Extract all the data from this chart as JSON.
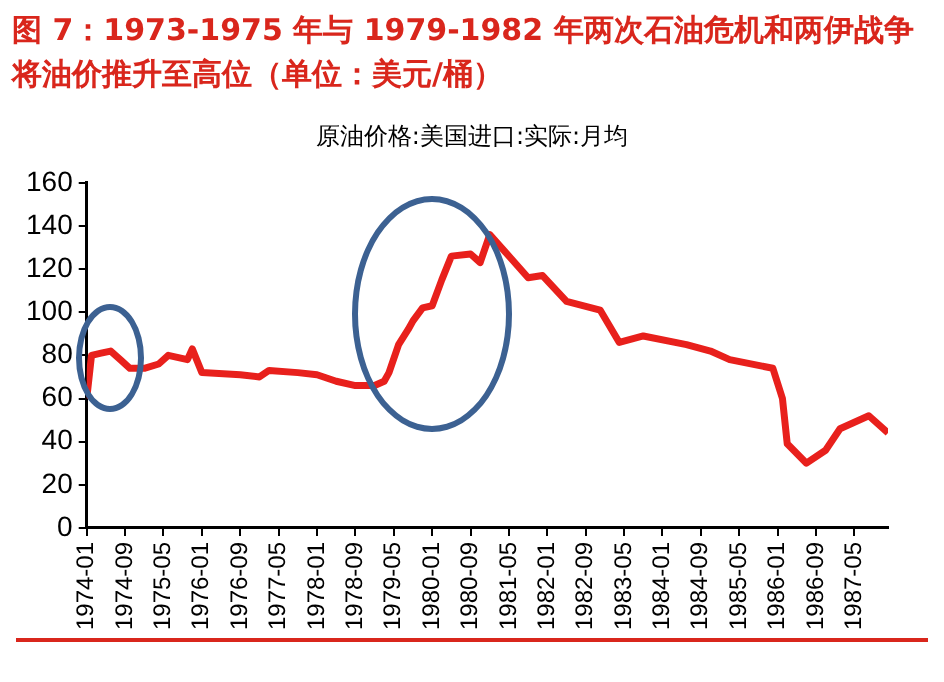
{
  "chart_data": {
    "type": "line",
    "title": "图 7：1973-1975 年与 1979-1982 年两次石油危机和两伊战争将油价推升至高位（单位：美元/桶）",
    "subtitle": "原油价格:美国进口:实际:月均",
    "x": [
      "1974-01",
      "1974-02",
      "1974-04",
      "1974-06",
      "1974-08",
      "1974-10",
      "1975-01",
      "1975-04",
      "1975-06",
      "1975-10",
      "1975-11",
      "1976-01",
      "1976-09",
      "1977-01",
      "1977-03",
      "1977-09",
      "1978-01",
      "1978-05",
      "1978-09",
      "1979-01",
      "1979-03",
      "1979-04",
      "1979-06",
      "1979-08",
      "1979-09",
      "1979-11",
      "1980-01",
      "1980-03",
      "1980-05",
      "1980-09",
      "1980-11",
      "1981-01",
      "1981-03",
      "1981-09",
      "1981-12",
      "1982-05",
      "1982-12",
      "1983-04",
      "1983-09",
      "1984-06",
      "1984-11",
      "1985-03",
      "1985-12",
      "1986-02",
      "1986-03",
      "1986-07",
      "1986-11",
      "1987-02",
      "1987-08",
      "1987-12"
    ],
    "series": [
      {
        "color": "#e8201c",
        "values": [
          60,
          80,
          81,
          82,
          78,
          74,
          74,
          76,
          80,
          78,
          83,
          72,
          71,
          70,
          73,
          72,
          71,
          68,
          66,
          66,
          68,
          72,
          85,
          92,
          96,
          102,
          103,
          115,
          126,
          127,
          123,
          136,
          131,
          116,
          117,
          105,
          101,
          86,
          89,
          85,
          82,
          78,
          74,
          60,
          39,
          30,
          36,
          46,
          52,
          44
        ]
      }
    ],
    "xlim": [
      "1974-01",
      "1987-12"
    ],
    "xticks": [
      "1974-01",
      "1974-09",
      "1975-05",
      "1976-01",
      "1976-09",
      "1977-05",
      "1978-01",
      "1978-09",
      "1979-05",
      "1980-01",
      "1980-09",
      "1981-05",
      "1982-01",
      "1982-09",
      "1983-05",
      "1984-01",
      "1984-09",
      "1985-05",
      "1986-01",
      "1986-09",
      "1987-05"
    ],
    "ylim": [
      0,
      160
    ],
    "yticks": [
      0,
      20,
      40,
      60,
      80,
      100,
      120,
      140,
      160
    ],
    "grid": false,
    "legend": false,
    "marker": "none",
    "line_style": "solid"
  }
}
